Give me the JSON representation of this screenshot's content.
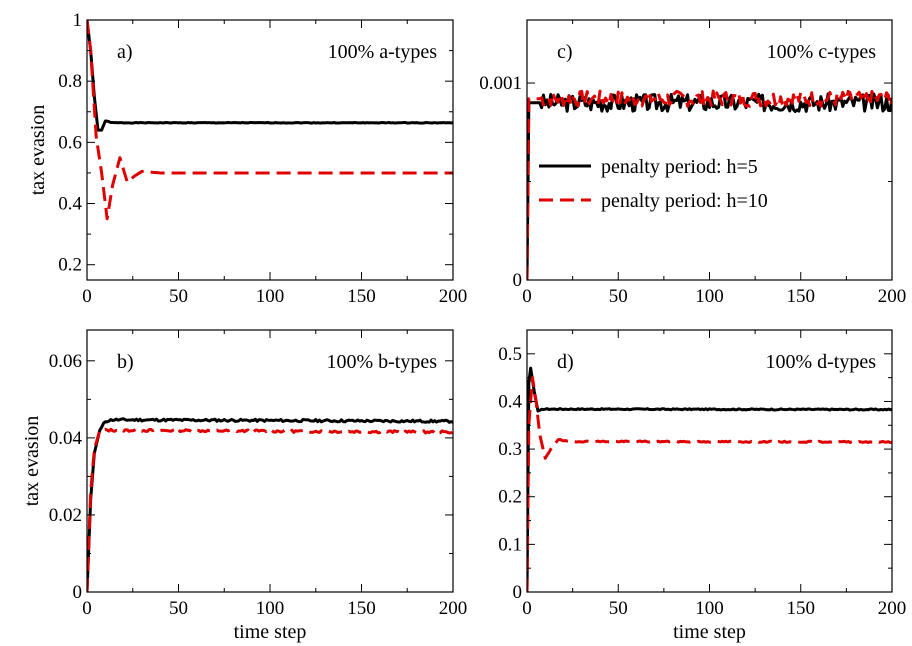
{
  "chart_data": [
    {
      "type": "line",
      "panel_label": "a)",
      "title": "100% a-types",
      "xlabel": "",
      "ylabel": "tax evasion",
      "xlim": [
        0,
        200
      ],
      "ylim": [
        0.15,
        1.0
      ],
      "xticks": [
        0,
        50,
        100,
        150,
        200
      ],
      "xtick_labels": [
        "0",
        "50",
        "100",
        "150",
        "200"
      ],
      "yticks": [
        0.2,
        0.4,
        0.6,
        0.8,
        1.0
      ],
      "ytick_labels": [
        "0.2",
        "0.4",
        "0.6",
        "0.8",
        "1"
      ],
      "series": [
        {
          "color": "#000000",
          "dash": "solid",
          "noise": 0.001,
          "points": [
            [
              0,
              1.0
            ],
            [
              2,
              0.9
            ],
            [
              4,
              0.75
            ],
            [
              6,
              0.64
            ],
            [
              8,
              0.64
            ],
            [
              10,
              0.67
            ],
            [
              14,
              0.664
            ],
            [
              200,
              0.664
            ]
          ]
        },
        {
          "color": "#e00000",
          "dash": "dashed",
          "noise": 0.0,
          "points": [
            [
              0,
              1.0
            ],
            [
              2,
              0.9
            ],
            [
              5,
              0.62
            ],
            [
              8,
              0.5
            ],
            [
              11,
              0.35
            ],
            [
              14,
              0.46
            ],
            [
              18,
              0.55
            ],
            [
              22,
              0.47
            ],
            [
              26,
              0.49
            ],
            [
              30,
              0.505
            ],
            [
              40,
              0.5
            ],
            [
              200,
              0.5
            ]
          ]
        }
      ]
    },
    {
      "type": "line",
      "panel_label": "c)",
      "title": "100% c-types",
      "xlabel": "",
      "ylabel": "",
      "xlim": [
        0,
        200
      ],
      "ylim": [
        0,
        0.00132
      ],
      "xticks": [
        0,
        50,
        100,
        150,
        200
      ],
      "xtick_labels": [
        "0",
        "50",
        "100",
        "150",
        "200"
      ],
      "yticks": [
        0,
        0.001
      ],
      "ytick_labels": [
        "0",
        "0.001"
      ],
      "legend": {
        "position": "upper-left",
        "entries": [
          {
            "label": "penalty period: h=5",
            "color": "#000000",
            "dash": "solid"
          },
          {
            "label": "penalty period: h=10",
            "color": "#e00000",
            "dash": "dashed"
          }
        ]
      },
      "series": [
        {
          "color": "#000000",
          "dash": "solid",
          "noise": 4.5e-05,
          "seed": 3,
          "points": [
            [
              0,
              0
            ],
            [
              1,
              0.0009
            ],
            [
              200,
              0.0009
            ]
          ]
        },
        {
          "color": "#e00000",
          "dash": "dashed",
          "noise": 4e-05,
          "seed": 7,
          "points": [
            [
              0,
              0
            ],
            [
              1,
              0.00092
            ],
            [
              200,
              0.00092
            ]
          ]
        }
      ]
    },
    {
      "type": "line",
      "panel_label": "b)",
      "title": "100% b-types",
      "xlabel": "time step",
      "ylabel": "tax evasion",
      "xlim": [
        0,
        200
      ],
      "ylim": [
        0,
        0.068
      ],
      "xticks": [
        0,
        50,
        100,
        150,
        200
      ],
      "xtick_labels": [
        "0",
        "50",
        "100",
        "150",
        "200"
      ],
      "yticks": [
        0,
        0.02,
        0.04,
        0.06
      ],
      "ytick_labels": [
        "0",
        "0.02",
        "0.04",
        "0.06"
      ],
      "series": [
        {
          "color": "#000000",
          "dash": "solid",
          "noise": 0.0003,
          "seed": 11,
          "points": [
            [
              0,
              0
            ],
            [
              2,
              0.024
            ],
            [
              4,
              0.036
            ],
            [
              7,
              0.042
            ],
            [
              10,
              0.0443
            ],
            [
              14,
              0.0447
            ],
            [
              200,
              0.0443
            ]
          ]
        },
        {
          "color": "#e00000",
          "dash": "dashed",
          "noise": 0.0003,
          "seed": 13,
          "points": [
            [
              0,
              0
            ],
            [
              2,
              0.026
            ],
            [
              4,
              0.037
            ],
            [
              7,
              0.042
            ],
            [
              10,
              0.042
            ],
            [
              200,
              0.0415
            ]
          ]
        }
      ]
    },
    {
      "type": "line",
      "panel_label": "d)",
      "title": "100% d-types",
      "xlabel": "time step",
      "ylabel": "",
      "xlim": [
        0,
        200
      ],
      "ylim": [
        0,
        0.55
      ],
      "xticks": [
        0,
        50,
        100,
        150,
        200
      ],
      "xtick_labels": [
        "0",
        "50",
        "100",
        "150",
        "200"
      ],
      "yticks": [
        0,
        0.1,
        0.2,
        0.3,
        0.4,
        0.5
      ],
      "ytick_labels": [
        "0",
        "0.1",
        "0.2",
        "0.3",
        "0.4",
        "0.5"
      ],
      "series": [
        {
          "color": "#000000",
          "dash": "solid",
          "noise": 0.0012,
          "seed": 17,
          "points": [
            [
              0,
              0
            ],
            [
              1,
              0.44
            ],
            [
              2,
              0.47
            ],
            [
              4,
              0.42
            ],
            [
              6,
              0.38
            ],
            [
              9,
              0.384
            ],
            [
              200,
              0.383
            ]
          ]
        },
        {
          "color": "#e00000",
          "dash": "dashed",
          "noise": 0.0012,
          "seed": 19,
          "points": [
            [
              0,
              0
            ],
            [
              1,
              0.35
            ],
            [
              3,
              0.45
            ],
            [
              5,
              0.4
            ],
            [
              7,
              0.33
            ],
            [
              10,
              0.28
            ],
            [
              13,
              0.3
            ],
            [
              17,
              0.32
            ],
            [
              22,
              0.316
            ],
            [
              200,
              0.315
            ]
          ]
        }
      ]
    }
  ]
}
